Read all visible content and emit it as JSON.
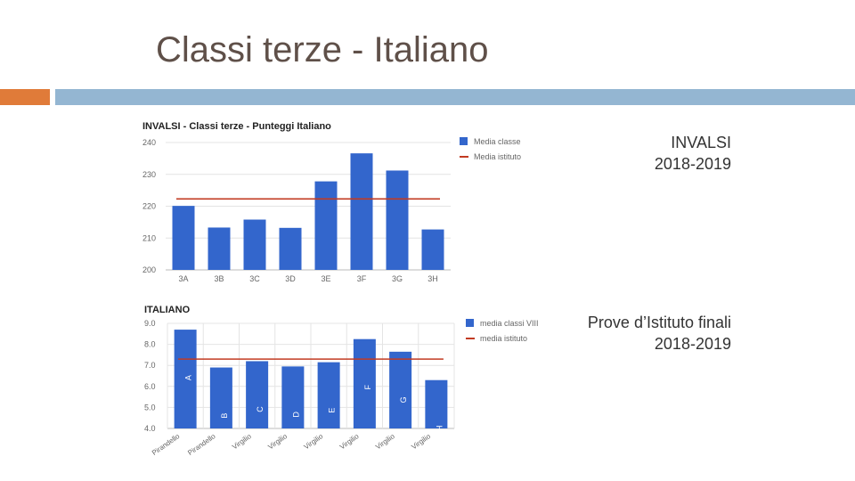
{
  "slide": {
    "title": "Classi terze - Italiano",
    "label_invalsi_line1": "INVALSI",
    "label_invalsi_line2": "2018-2019",
    "label_prove_line1": "Prove d’Istituto finali",
    "label_prove_line2": "2018-2019",
    "accent_orange": "#e07b39",
    "accent_blue": "#94b6d2"
  },
  "chart_data": [
    {
      "type": "bar",
      "title": "INVALSI - Classi terze - Punteggi Italiano",
      "categories": [
        "3A",
        "3B",
        "3C",
        "3D",
        "3E",
        "3F",
        "3G",
        "3H"
      ],
      "series": [
        {
          "name": "Media classe",
          "values": [
            220.1,
            213.3,
            215.8,
            213.2,
            227.8,
            236.6,
            231.2,
            212.7
          ],
          "color": "#3366cc"
        }
      ],
      "reference_line": {
        "name": "Media istituto",
        "value": 222.3,
        "color": "#c23b22"
      },
      "ylim": [
        200,
        240
      ],
      "yticks": [
        "200",
        "210",
        "220",
        "230",
        "240"
      ],
      "legend": "right",
      "grid": true
    },
    {
      "type": "bar",
      "title": "ITALIANO",
      "categories": [
        "Pirandello",
        "Pirandello",
        "Virgilio",
        "Virgilio",
        "Virgilio",
        "Virgilio",
        "Virgilio",
        "Virgilio"
      ],
      "bar_labels": [
        "A",
        "B",
        "C",
        "D",
        "E",
        "F",
        "G",
        "H"
      ],
      "series": [
        {
          "name": "media classi VIII",
          "values": [
            8.7,
            6.9,
            7.2,
            6.95,
            7.15,
            8.25,
            7.65,
            6.3
          ],
          "color": "#3366cc"
        }
      ],
      "reference_line": {
        "name": "media istituto",
        "value": 7.3,
        "color": "#c23b22"
      },
      "ylim": [
        4.0,
        9.0
      ],
      "yticks": [
        "4.0",
        "5.0",
        "6.0",
        "7.0",
        "8.0",
        "9.0"
      ],
      "legend": "right",
      "grid": true
    }
  ]
}
